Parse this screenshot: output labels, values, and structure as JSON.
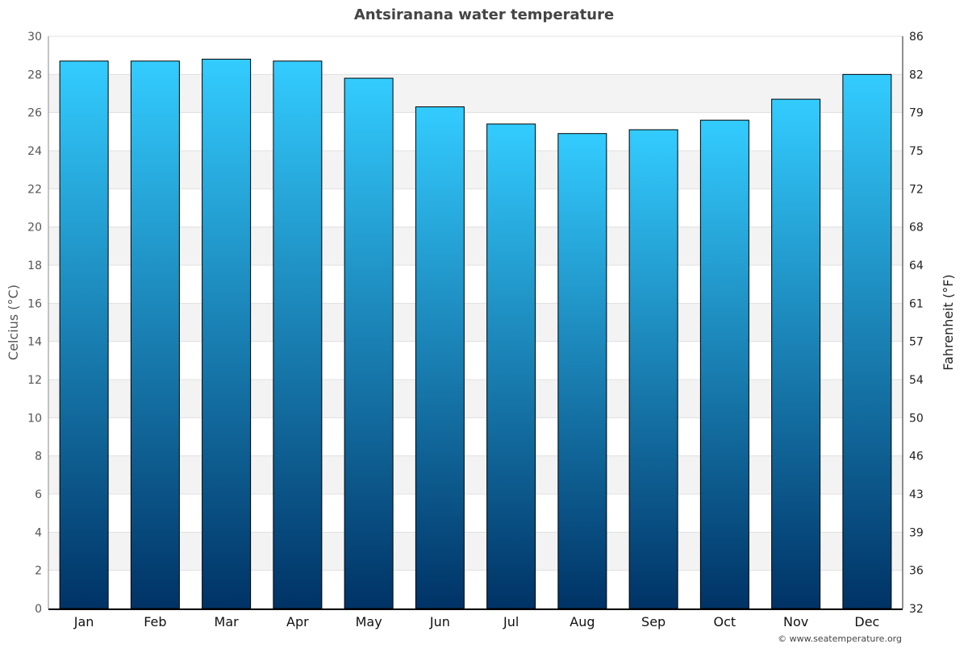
{
  "chart_data": {
    "type": "bar",
    "title": "Antsiranana water temperature",
    "ylabel": "Celcius (°C)",
    "y2label": "Fahrenheit (°F)",
    "categories": [
      "Jan",
      "Feb",
      "Mar",
      "Apr",
      "May",
      "Jun",
      "Jul",
      "Aug",
      "Sep",
      "Oct",
      "Nov",
      "Dec"
    ],
    "values": [
      28.7,
      28.7,
      28.8,
      28.7,
      27.8,
      26.3,
      25.4,
      24.9,
      25.1,
      25.6,
      26.7,
      28.0
    ],
    "ylim": [
      0,
      30
    ],
    "yticks": [
      0,
      2,
      4,
      6,
      8,
      10,
      12,
      14,
      16,
      18,
      20,
      22,
      24,
      26,
      28,
      30
    ],
    "y2ticks": [
      "32",
      "36",
      "39",
      "43",
      "46",
      "50",
      "54",
      "57",
      "61",
      "64",
      "68",
      "72",
      "75",
      "79",
      "82",
      "86"
    ],
    "grid": true,
    "colors": {
      "bar_top": "#33ccff",
      "bar_bottom": "#003366",
      "band": "#f3f3f3"
    }
  },
  "credit": "© www.seatemperature.org"
}
